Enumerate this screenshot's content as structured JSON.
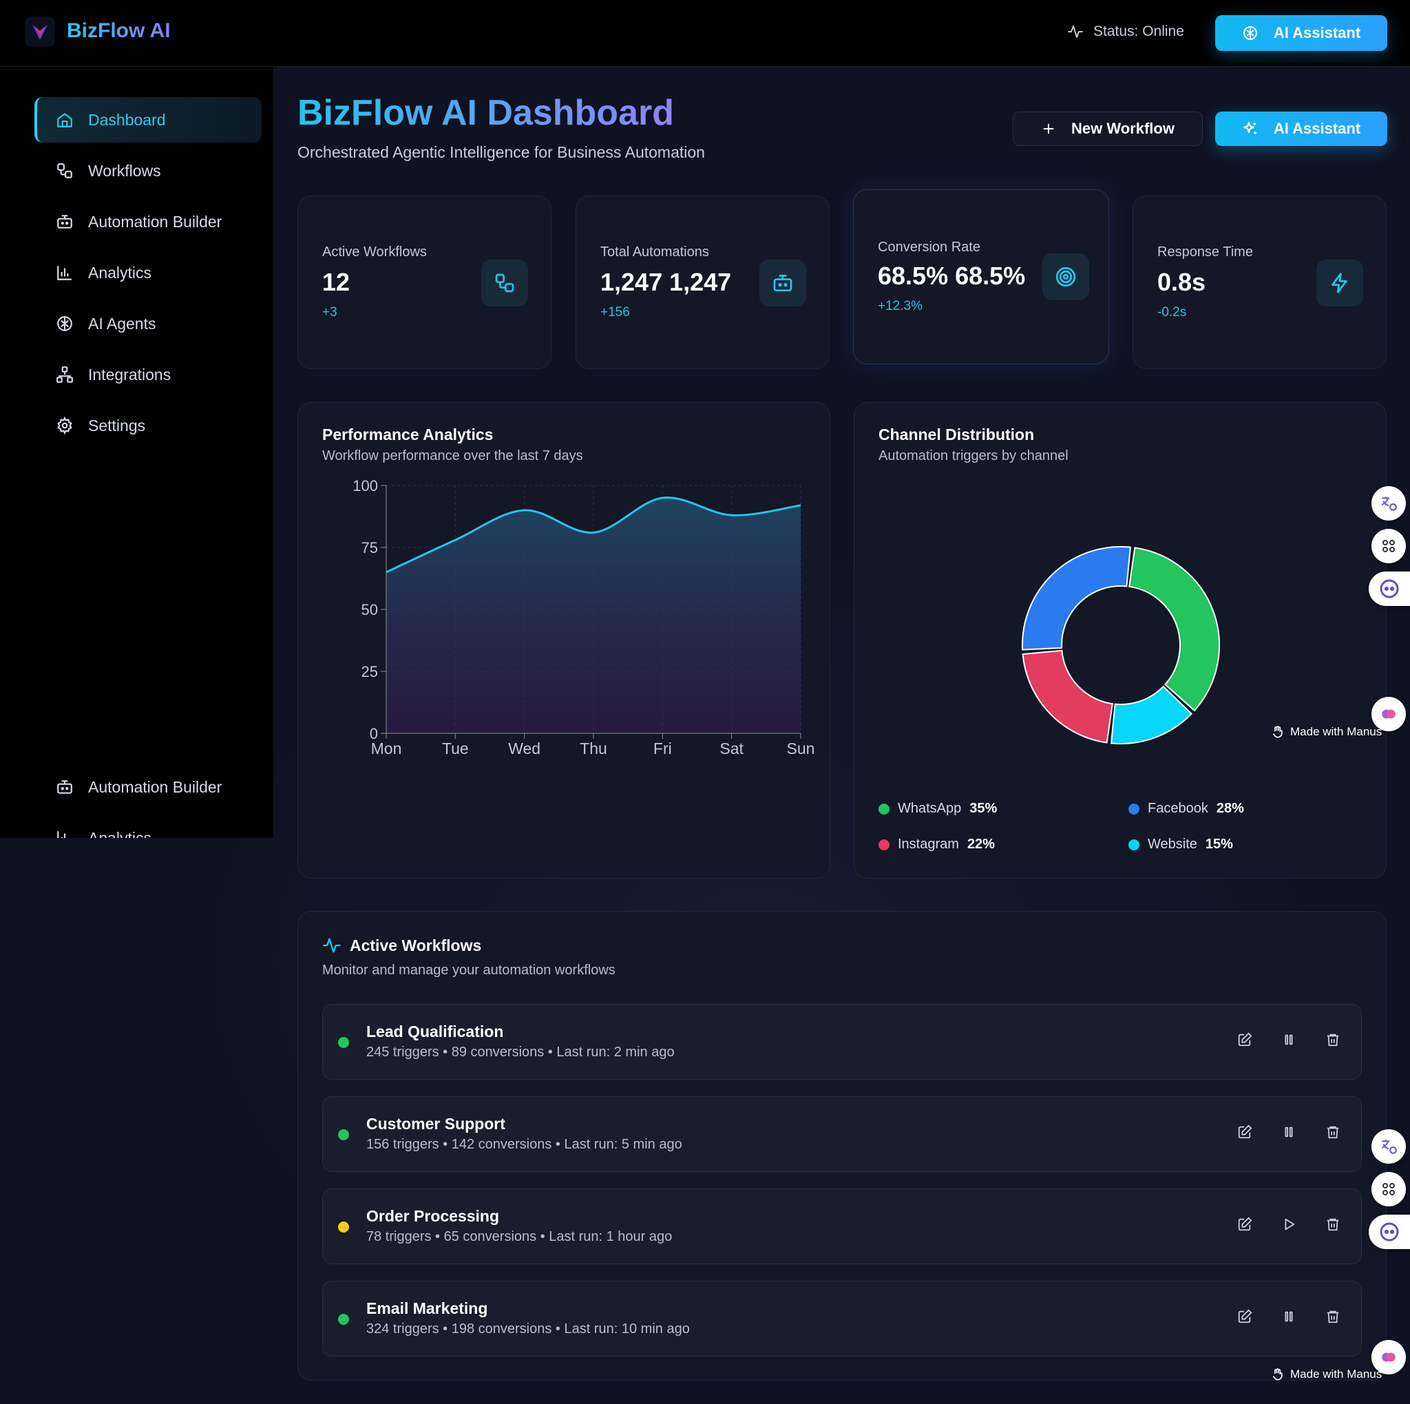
{
  "brand": {
    "name": "BizFlow AI"
  },
  "topbar": {
    "status": "Status: Online",
    "ai_button": "AI Assistant"
  },
  "sidebar": {
    "items": [
      {
        "label": "Dashboard",
        "icon": "home-icon",
        "active": true
      },
      {
        "label": "Workflows",
        "icon": "workflow-icon"
      },
      {
        "label": "Automation Builder",
        "icon": "bot-icon"
      },
      {
        "label": "Analytics",
        "icon": "bar-chart-icon"
      },
      {
        "label": "AI Agents",
        "icon": "brain-icon"
      },
      {
        "label": "Integrations",
        "icon": "network-icon"
      },
      {
        "label": "Settings",
        "icon": "gear-icon"
      }
    ],
    "bottom_items": [
      {
        "label": "Automation Builder",
        "icon": "bot-icon"
      },
      {
        "label": "Analytics",
        "icon": "bar-chart-icon"
      }
    ]
  },
  "header": {
    "title": "BizFlow AI Dashboard",
    "subtitle": "Orchestrated Agentic Intelligence for Business Automation",
    "new_workflow": "New Workflow",
    "ai_button": "AI Assistant"
  },
  "stats": [
    {
      "label": "Active Workflows",
      "value": "12",
      "delta": "+3",
      "icon": "workflow-icon"
    },
    {
      "label": "Total Automations",
      "value": "1,247 1,247",
      "delta": "+156",
      "icon": "bot-icon"
    },
    {
      "label": "Conversion Rate",
      "value": "68.5% 68.5%",
      "delta": "+12.3%",
      "icon": "target-icon"
    },
    {
      "label": "Response Time",
      "value": "0.8s",
      "delta": "-0.2s",
      "icon": "lightning-icon"
    }
  ],
  "performance": {
    "title": "Performance Analytics",
    "subtitle": "Workflow performance over the last 7 days"
  },
  "channels": {
    "title": "Channel Distribution",
    "subtitle": "Automation triggers by channel"
  },
  "chart_data": [
    {
      "type": "area",
      "title": "Performance Analytics",
      "categories": [
        "Mon",
        "Tue",
        "Wed",
        "Thu",
        "Fri",
        "Sat",
        "Sun"
      ],
      "values": [
        65,
        78,
        90,
        81,
        95,
        88,
        92
      ],
      "ylim": [
        0,
        100
      ],
      "yticks": [
        0,
        25,
        50,
        75,
        100
      ],
      "grid": true,
      "colors": {
        "line": "#22c6ee"
      }
    },
    {
      "type": "pie",
      "title": "Channel Distribution",
      "donut": true,
      "slices": [
        {
          "name": "WhatsApp",
          "value": 35,
          "label": "35%",
          "color": "#22c55e"
        },
        {
          "name": "Website",
          "value": 15,
          "label": "15%",
          "color": "#06d6f8"
        },
        {
          "name": "Instagram",
          "value": 22,
          "label": "22%",
          "color": "#e23c5e"
        },
        {
          "name": "Facebook",
          "value": 28,
          "label": "28%",
          "color": "#2a7bf0"
        }
      ]
    }
  ],
  "workflows": {
    "title": "Active Workflows",
    "subtitle": "Monitor and manage your automation workflows",
    "rows": [
      {
        "name": "Lead Qualification",
        "meta": "245 triggers • 89 conversions • Last run: 2 min ago",
        "status_color": "#22c55e",
        "toggle": "pause-icon"
      },
      {
        "name": "Customer Support",
        "meta": "156 triggers • 142 conversions • Last run: 5 min ago",
        "status_color": "#22c55e",
        "toggle": "pause-icon"
      },
      {
        "name": "Order Processing",
        "meta": "78 triggers • 65 conversions • Last run: 1 hour ago",
        "status_color": "#facc15",
        "toggle": "play-icon"
      },
      {
        "name": "Email Marketing",
        "meta": "324 triggers • 198 conversions • Last run: 10 min ago",
        "status_color": "#22c55e",
        "toggle": "pause-icon"
      }
    ]
  },
  "badge": {
    "made_with": "Made with Manus"
  }
}
